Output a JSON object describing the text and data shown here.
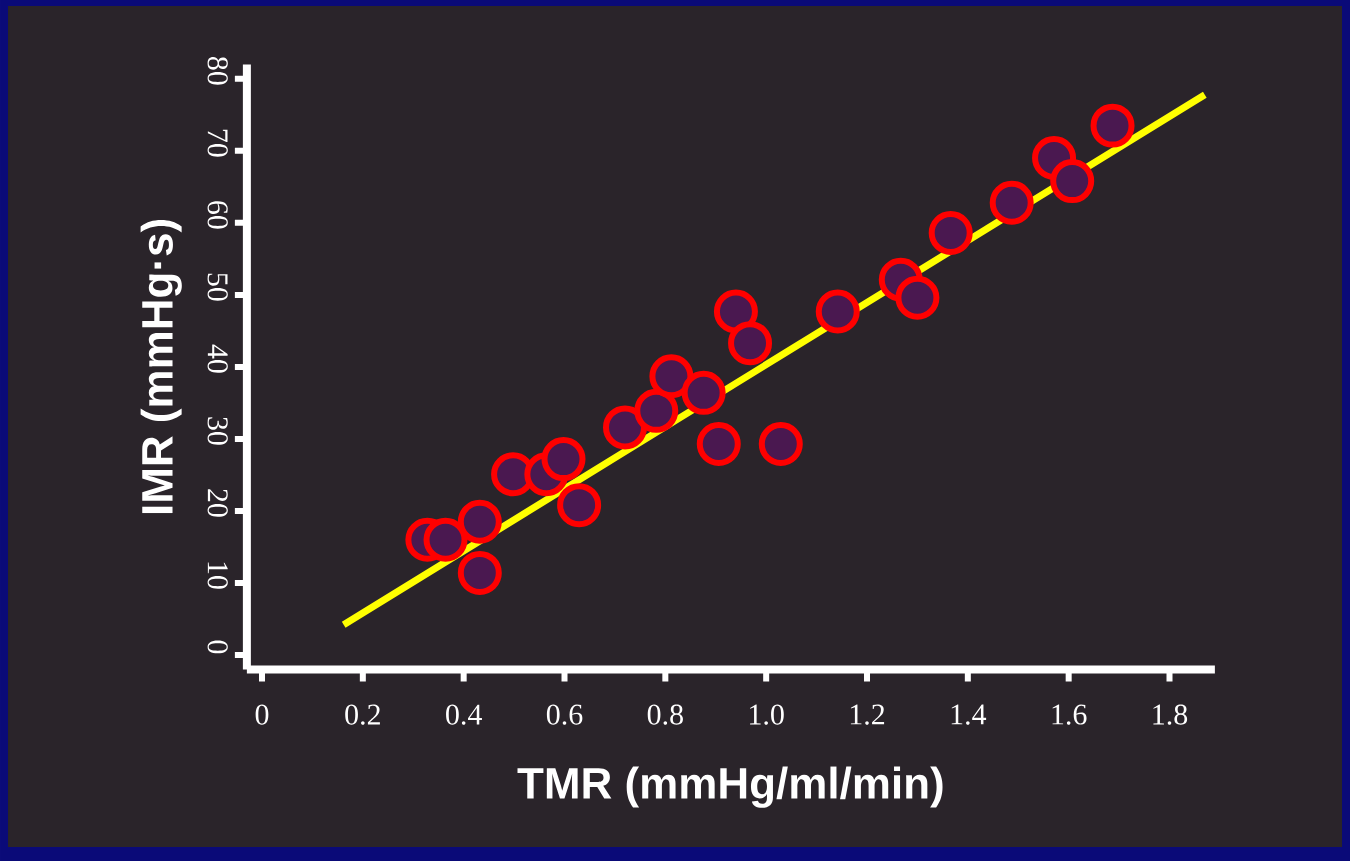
{
  "chart_data": {
    "type": "scatter",
    "xlabel": "TMR (mmHg/ml/min)",
    "ylabel": "IMR (mmHg·s)",
    "xlim": [
      -0.03,
      1.89
    ],
    "ylim": [
      -2,
      82
    ],
    "xticks": [
      0,
      0.2,
      0.4,
      0.6,
      0.8,
      {
        "value": 1,
        "label": "1.0"
      },
      1.2,
      1.4,
      1.6,
      1.8
    ],
    "yticks": [
      0,
      10,
      20,
      30,
      40,
      50,
      60,
      70,
      80
    ],
    "grid": false,
    "series": [
      {
        "color": "#ff0000",
        "marker": "circle",
        "x": [
          0.328,
          0.364,
          0.432,
          0.432,
          0.498,
          0.564,
          0.598,
          0.629,
          0.72,
          0.782,
          0.812,
          0.876,
          0.906,
          0.94,
          0.968,
          1.029,
          1.142,
          1.267,
          1.3,
          1.366,
          1.487,
          1.571,
          1.607,
          1.687
        ],
        "values": [
          16,
          16,
          18.5,
          11.4,
          25.1,
          25.1,
          27.2,
          20.8,
          31.6,
          33.9,
          38.7,
          36.4,
          29.3,
          47.7,
          43.3,
          29.3,
          47.7,
          52.1,
          49.6,
          58.6,
          62.8,
          69,
          65.8,
          73.5
        ]
      },
      {
        "type": "line",
        "color": "#ffff00",
        "marker": "none",
        "line_style": "solid",
        "x": [
          0.162,
          1.87
        ],
        "values": [
          4.2,
          77.8
        ]
      }
    ]
  }
}
